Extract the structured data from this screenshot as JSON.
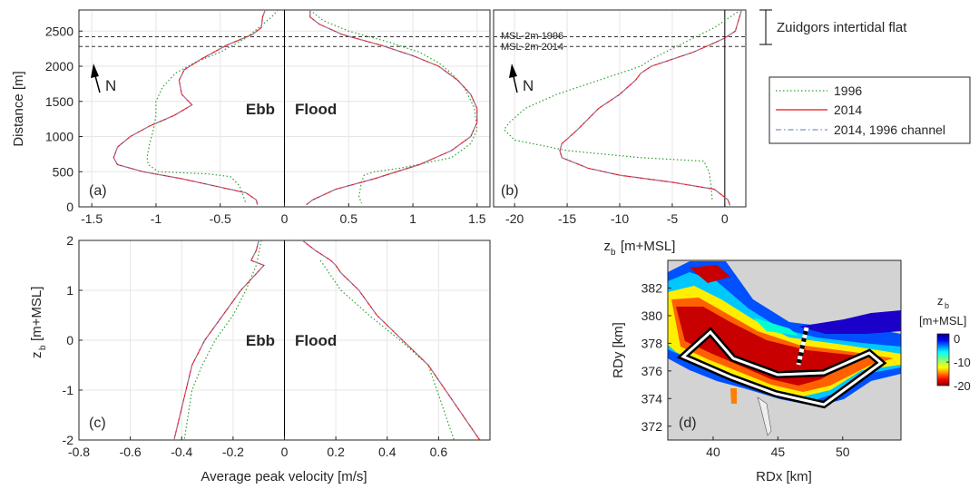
{
  "chart_data": [
    {
      "id": "a",
      "type": "line",
      "panel_label": "(a)",
      "xlabel": "",
      "ylabel": "Distance [m]",
      "xlim": [
        -1.6,
        1.6
      ],
      "ylim": [
        0,
        2800
      ],
      "xticks": [
        -1.5,
        -1,
        -0.5,
        0,
        0.5,
        1,
        1.5
      ],
      "xtick_labels": [
        "-1.5",
        "-1",
        "-0.5",
        "0",
        "0.5",
        "1",
        "1.5"
      ],
      "yticks": [
        0,
        500,
        1000,
        1500,
        2000,
        2500
      ],
      "ytick_labels": [
        "0",
        "500",
        "1000",
        "1500",
        "2000",
        "2500"
      ],
      "grid": true,
      "annotations": [
        "Ebb",
        "Flood"
      ],
      "north_arrow_label": "N",
      "hlines": [
        2420,
        2280
      ],
      "vline": 0,
      "series": [
        {
          "name": "1996",
          "branch": "ebb",
          "x": [
            -0.05,
            -0.1,
            -0.2,
            -0.3,
            -0.5,
            -0.7,
            -0.85,
            -0.95,
            -1.0,
            -1.0,
            -1.02,
            -1.05,
            -1.07,
            -1.06,
            -0.98,
            -0.6,
            -0.42,
            -0.35,
            -0.32,
            -0.3
          ],
          "y": [
            2800,
            2700,
            2550,
            2400,
            2200,
            2050,
            1900,
            1700,
            1500,
            1300,
            1100,
            900,
            700,
            600,
            500,
            470,
            430,
            300,
            150,
            50
          ]
        },
        {
          "name": "1996",
          "branch": "flood",
          "x": [
            0.2,
            0.3,
            0.5,
            0.8,
            1.05,
            1.2,
            1.3,
            1.4,
            1.48,
            1.5,
            1.45,
            1.3,
            0.9,
            0.7,
            0.62,
            0.6,
            0.58,
            0.6
          ],
          "y": [
            2800,
            2650,
            2500,
            2350,
            2200,
            2050,
            1900,
            1700,
            1400,
            1100,
            900,
            700,
            550,
            500,
            450,
            350,
            150,
            50
          ]
        },
        {
          "name": "2014",
          "branch": "ebb",
          "x": [
            -0.15,
            -0.17,
            -0.18,
            -0.25,
            -0.45,
            -0.65,
            -0.78,
            -0.82,
            -0.8,
            -0.72,
            -0.86,
            -1.05,
            -1.2,
            -1.3,
            -1.33,
            -1.3,
            -1.1,
            -0.8,
            -0.5,
            -0.3,
            -0.22,
            -0.21
          ],
          "y": [
            2800,
            2700,
            2550,
            2450,
            2300,
            2100,
            1950,
            1800,
            1600,
            1450,
            1300,
            1150,
            1000,
            850,
            700,
            600,
            500,
            400,
            280,
            200,
            100,
            30
          ]
        },
        {
          "name": "2014",
          "branch": "flood",
          "x": [
            0.2,
            0.2,
            0.27,
            0.45,
            0.75,
            1.0,
            1.2,
            1.35,
            1.45,
            1.5,
            1.5,
            1.45,
            1.3,
            1.05,
            0.7,
            0.4,
            0.22,
            0.17
          ],
          "y": [
            2800,
            2700,
            2600,
            2450,
            2300,
            2150,
            2000,
            1800,
            1600,
            1400,
            1200,
            1000,
            800,
            600,
            400,
            250,
            100,
            30
          ]
        }
      ]
    },
    {
      "id": "b",
      "type": "line",
      "panel_label": "(b)",
      "xlabel": "z_b [m+MSL]",
      "xlim": [
        -22,
        2
      ],
      "ylim": [
        0,
        2800
      ],
      "xticks": [
        -20,
        -15,
        -10,
        -5,
        0
      ],
      "xtick_labels": [
        "-20",
        "-15",
        "-10",
        "-5",
        "0"
      ],
      "grid": true,
      "annotations": [
        "MSL-2m 1996",
        "MSL-2m 2014"
      ],
      "north_arrow_label": "N",
      "hlines": [
        2420,
        2280
      ],
      "vline": 0,
      "series": [
        {
          "name": "1996",
          "x": [
            1.5,
            0.5,
            -1,
            -3,
            -5,
            -7,
            -8,
            -9,
            -10,
            -11,
            -13,
            -16,
            -19,
            -20.5,
            -21,
            -20,
            -15,
            -8,
            -2,
            -1.5,
            -1.3,
            -1.2
          ],
          "y": [
            2800,
            2700,
            2550,
            2400,
            2250,
            2100,
            2000,
            1950,
            1900,
            1850,
            1750,
            1600,
            1400,
            1200,
            1100,
            950,
            800,
            700,
            650,
            500,
            300,
            100
          ]
        },
        {
          "name": "2014",
          "x": [
            1.6,
            1.3,
            1.0,
            0,
            -1.5,
            -3,
            -5,
            -7,
            -8,
            -8.5,
            -10,
            -12,
            -14,
            -15.5,
            -15.7,
            -15.5,
            -13,
            -10,
            -5,
            -1,
            0.3,
            0.5
          ],
          "y": [
            2800,
            2650,
            2500,
            2400,
            2300,
            2200,
            2100,
            2000,
            1900,
            1800,
            1600,
            1400,
            1100,
            900,
            800,
            700,
            550,
            450,
            350,
            250,
            100,
            20
          ]
        }
      ]
    },
    {
      "id": "c",
      "type": "line",
      "panel_label": "(c)",
      "xlabel": "Average peak velocity [m/s]",
      "ylabel": "z_b [m+MSL]",
      "xlim": [
        -0.8,
        0.8
      ],
      "ylim": [
        -2,
        2
      ],
      "xticks": [
        -0.8,
        -0.6,
        -0.4,
        -0.2,
        0,
        0.2,
        0.4,
        0.6
      ],
      "xtick_labels": [
        "-0.8",
        "-0.6",
        "-0.4",
        "-0.2",
        "0",
        "0.2",
        "0.4",
        "0.6"
      ],
      "yticks": [
        -2,
        -1,
        0,
        1,
        2
      ],
      "ytick_labels": [
        "-2",
        "-1",
        "0",
        "1",
        "2"
      ],
      "grid": true,
      "annotations": [
        "Ebb",
        "Flood"
      ],
      "vline": 0,
      "series": [
        {
          "name": "1996",
          "branch": "ebb",
          "x": [
            -0.09,
            -0.11,
            -0.15,
            -0.2,
            -0.27,
            -0.32,
            -0.36,
            -0.39
          ],
          "y": [
            2,
            1.5,
            1,
            0.5,
            0,
            -0.5,
            -1,
            -2
          ]
        },
        {
          "name": "1996",
          "branch": "flood",
          "x": [
            0.14,
            0.22,
            0.33,
            0.45,
            0.56,
            0.66
          ],
          "y": [
            1.6,
            1,
            0.5,
            0,
            -0.5,
            -2
          ]
        },
        {
          "name": "2014",
          "branch": "ebb",
          "x": [
            -0.1,
            -0.11,
            -0.13,
            -0.08,
            -0.17,
            -0.24,
            -0.31,
            -0.36,
            -0.43
          ],
          "y": [
            2,
            1.8,
            1.6,
            1.5,
            1,
            0.5,
            0,
            -0.5,
            -2
          ]
        },
        {
          "name": "2014",
          "branch": "flood",
          "x": [
            0.07,
            0.12,
            0.18,
            0.2,
            0.22,
            0.29,
            0.36,
            0.46,
            0.56,
            0.76
          ],
          "y": [
            2,
            1.8,
            1.6,
            1.5,
            1.35,
            1,
            0.5,
            0,
            -0.5,
            -2
          ]
        }
      ]
    },
    {
      "id": "d",
      "type": "heatmap",
      "panel_label": "(d)",
      "xlabel": "RDx [km]",
      "ylabel": "RDy [km]",
      "xlim": [
        36.5,
        54.5
      ],
      "ylim": [
        371,
        384
      ],
      "xticks": [
        40,
        45,
        50
      ],
      "xtick_labels": [
        "40",
        "45",
        "50"
      ],
      "yticks": [
        372,
        374,
        376,
        378,
        380,
        382
      ],
      "ytick_labels": [
        "372",
        "374",
        "376",
        "378",
        "380",
        "382"
      ],
      "colorbar": {
        "title": "z_b",
        "unit": "[m+MSL]",
        "ticks": [
          0,
          -10,
          -20
        ],
        "tick_labels": [
          "0",
          "-10",
          "-20"
        ],
        "range": [
          -20,
          2
        ],
        "colormap": "jet"
      },
      "background": "#d3d3d3"
    }
  ],
  "legend": {
    "entries": [
      {
        "label": "1996",
        "color": "#2ca02c",
        "style": "dotted"
      },
      {
        "label": "2014",
        "color": "#e8171f",
        "style": "solid"
      },
      {
        "label": "2014, 1996 channel",
        "color": "#7a93c7",
        "style": "dashdot"
      }
    ]
  },
  "bracket_label": "Zuidgors intertidal flat",
  "colors": {
    "series_1996": "#2ca02c",
    "series_2014": "#e8171f",
    "series_2014_1996_channel": "#7a93c7"
  }
}
